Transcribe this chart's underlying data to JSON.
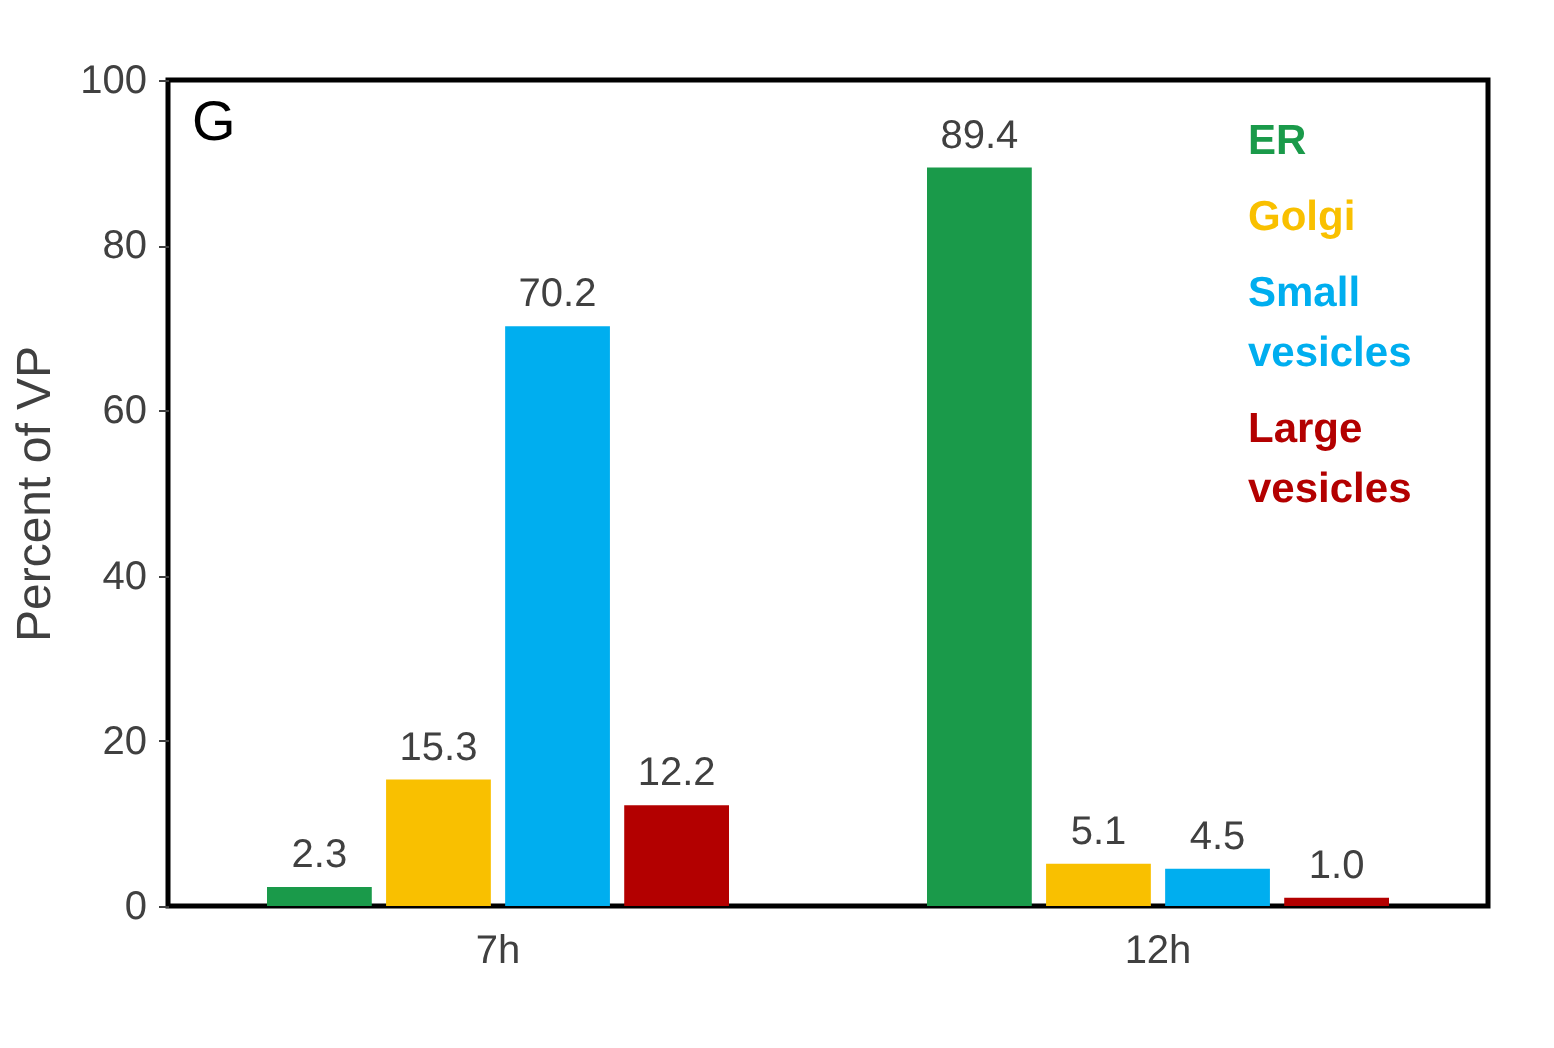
{
  "chart_data": {
    "type": "bar",
    "ylabel": "Percent of VP",
    "annotations": [
      "G"
    ],
    "categories": [
      "7h",
      "12h"
    ],
    "series": [
      {
        "name": "ER",
        "color": "#1a9a4a",
        "values": [
          2.3,
          89.4
        ],
        "value_labels": [
          "2.3",
          "89.4"
        ]
      },
      {
        "name": "Golgi",
        "color": "#f9c000",
        "values": [
          15.3,
          5.1
        ],
        "value_labels": [
          "15.3",
          "5.1"
        ]
      },
      {
        "name": "Small vesicles",
        "color": "#00aeef",
        "values": [
          70.2,
          4.5
        ],
        "value_labels": [
          "70.2",
          "4.5"
        ]
      },
      {
        "name": "Large vesicles",
        "color": "#b30000",
        "values": [
          12.2,
          1
        ],
        "value_labels": [
          "12.2",
          "1.0"
        ]
      }
    ],
    "ylim": [
      0,
      100
    ],
    "yticks": [
      0,
      20,
      40,
      60,
      80,
      100
    ],
    "grid": false,
    "legend": "top right"
  }
}
